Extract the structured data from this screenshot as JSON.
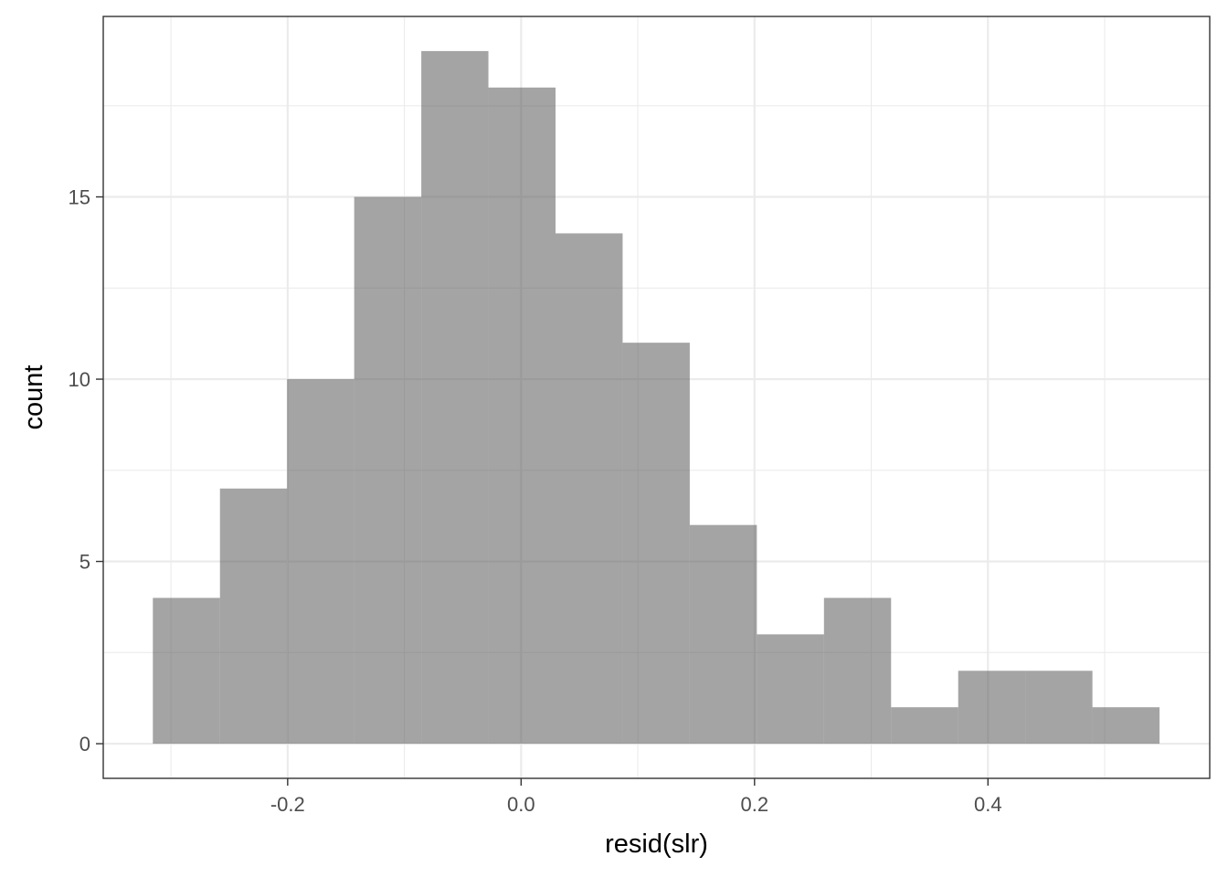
{
  "chart_data": {
    "type": "bar",
    "subtype": "histogram",
    "title": "",
    "xlabel": "resid(slr)",
    "ylabel": "count",
    "bins": [
      {
        "x0": -0.3155,
        "x1": -0.258,
        "count": 4
      },
      {
        "x0": -0.258,
        "x1": -0.2005,
        "count": 7
      },
      {
        "x0": -0.2005,
        "x1": -0.143,
        "count": 10
      },
      {
        "x0": -0.143,
        "x1": -0.0855,
        "count": 15
      },
      {
        "x0": -0.0855,
        "x1": -0.028,
        "count": 19
      },
      {
        "x0": -0.028,
        "x1": 0.0295,
        "count": 18
      },
      {
        "x0": 0.0295,
        "x1": 0.087,
        "count": 14
      },
      {
        "x0": 0.087,
        "x1": 0.1445,
        "count": 11
      },
      {
        "x0": 0.1445,
        "x1": 0.202,
        "count": 6
      },
      {
        "x0": 0.202,
        "x1": 0.2595,
        "count": 3
      },
      {
        "x0": 0.2595,
        "x1": 0.317,
        "count": 4
      },
      {
        "x0": 0.317,
        "x1": 0.3745,
        "count": 1
      },
      {
        "x0": 0.3745,
        "x1": 0.432,
        "count": 2
      },
      {
        "x0": 0.432,
        "x1": 0.4895,
        "count": 2
      },
      {
        "x0": 0.4895,
        "x1": 0.547,
        "count": 1
      }
    ],
    "xlim": [
      -0.358,
      0.59
    ],
    "ylim": [
      -0.95,
      19.95
    ],
    "x_ticks": [
      {
        "value": -0.2,
        "label": "-0.2"
      },
      {
        "value": 0.0,
        "label": "0.0"
      },
      {
        "value": 0.2,
        "label": "0.2"
      },
      {
        "value": 0.4,
        "label": "0.4"
      }
    ],
    "y_ticks": [
      {
        "value": 0,
        "label": "0"
      },
      {
        "value": 5,
        "label": "5"
      },
      {
        "value": 10,
        "label": "10"
      },
      {
        "value": 15,
        "label": "15"
      }
    ],
    "bar_color": "#595959",
    "bar_opacity": 0.55,
    "grid": true,
    "grid_color": "#ebebeb",
    "legend": "none"
  }
}
